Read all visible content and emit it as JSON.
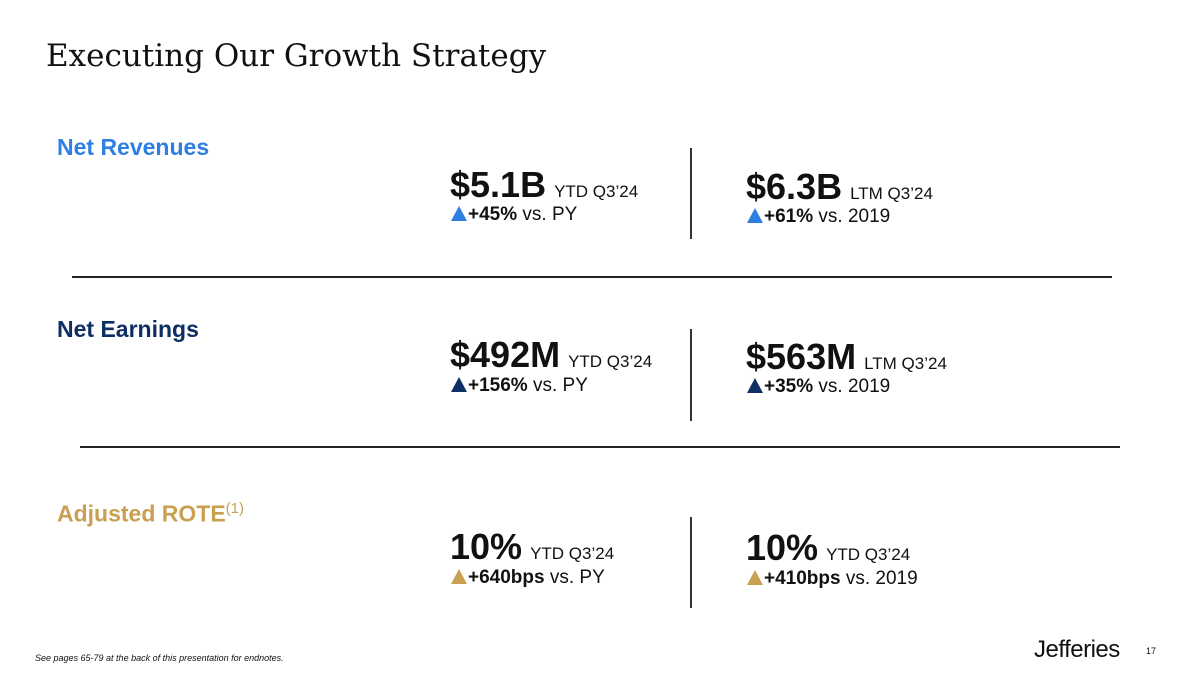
{
  "title": "Executing Our Growth Strategy",
  "colors": {
    "revenues": "#2f7fe3",
    "earnings": "#0e2f63",
    "rote": "#c9a052"
  },
  "sections": [
    {
      "label": "Net Revenues",
      "left": {
        "value": "$5.1B",
        "period": "YTD Q3’24",
        "change": "+45%",
        "compare": "vs. PY"
      },
      "right": {
        "value": "$6.3B",
        "period": "LTM Q3’24",
        "change": "+61%",
        "compare": "vs. 2019"
      }
    },
    {
      "label": "Net Earnings",
      "left": {
        "value": "$492M",
        "period": "YTD Q3’24",
        "change": "+156%",
        "compare": "vs. PY"
      },
      "right": {
        "value": "$563M",
        "period": "LTM Q3’24",
        "change": "+35%",
        "compare": "vs. 2019"
      }
    },
    {
      "label": "Adjusted ROTE",
      "footnote": "(1)",
      "left": {
        "value": "10%",
        "period": "YTD Q3’24",
        "change": "+640bps",
        "compare": "vs. PY"
      },
      "right": {
        "value": "10%",
        "period": "YTD Q3’24",
        "change": "+410bps",
        "compare": "vs. 2019"
      }
    }
  ],
  "footer": {
    "note": "See pages 65-79 at the back of this presentation for endnotes.",
    "logo": "Jefferies",
    "page": "17"
  }
}
